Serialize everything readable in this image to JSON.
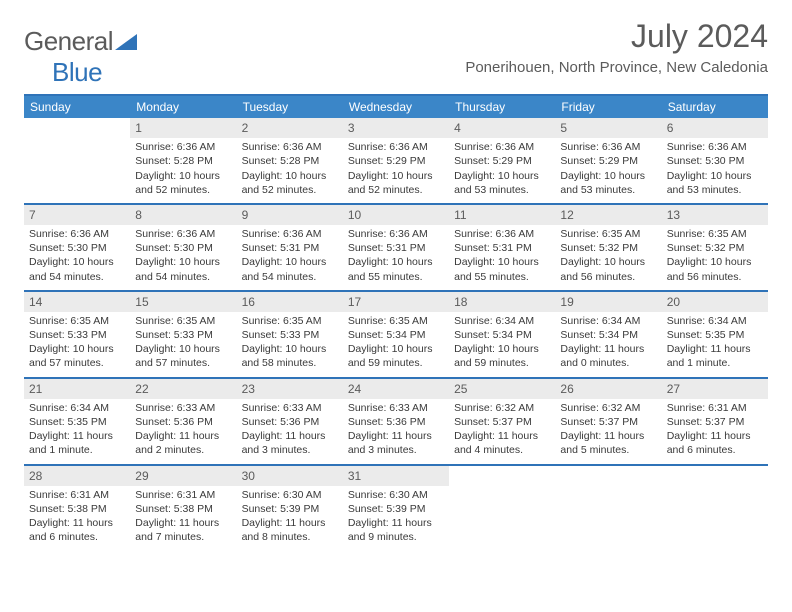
{
  "logo": {
    "word1": "General",
    "word2": "Blue"
  },
  "title": "July 2024",
  "location": "Ponerihouen, North Province, New Caledonia",
  "colors": {
    "brand_blue": "#2f73b8",
    "header_blue": "#3b86c8",
    "grey_text": "#5b5b5b",
    "daynum_bg": "#ebebeb",
    "body_text": "#3a3a3a"
  },
  "typography": {
    "title_fontsize": 32,
    "location_fontsize": 15,
    "dow_fontsize": 12,
    "cell_fontsize": 10.5
  },
  "dow": [
    "Sunday",
    "Monday",
    "Tuesday",
    "Wednesday",
    "Thursday",
    "Friday",
    "Saturday"
  ],
  "weeks": [
    [
      {
        "n": "",
        "lines": [
          "",
          "",
          "",
          ""
        ]
      },
      {
        "n": "1",
        "lines": [
          "Sunrise: 6:36 AM",
          "Sunset: 5:28 PM",
          "Daylight: 10 hours",
          "and 52 minutes."
        ]
      },
      {
        "n": "2",
        "lines": [
          "Sunrise: 6:36 AM",
          "Sunset: 5:28 PM",
          "Daylight: 10 hours",
          "and 52 minutes."
        ]
      },
      {
        "n": "3",
        "lines": [
          "Sunrise: 6:36 AM",
          "Sunset: 5:29 PM",
          "Daylight: 10 hours",
          "and 52 minutes."
        ]
      },
      {
        "n": "4",
        "lines": [
          "Sunrise: 6:36 AM",
          "Sunset: 5:29 PM",
          "Daylight: 10 hours",
          "and 53 minutes."
        ]
      },
      {
        "n": "5",
        "lines": [
          "Sunrise: 6:36 AM",
          "Sunset: 5:29 PM",
          "Daylight: 10 hours",
          "and 53 minutes."
        ]
      },
      {
        "n": "6",
        "lines": [
          "Sunrise: 6:36 AM",
          "Sunset: 5:30 PM",
          "Daylight: 10 hours",
          "and 53 minutes."
        ]
      }
    ],
    [
      {
        "n": "7",
        "lines": [
          "Sunrise: 6:36 AM",
          "Sunset: 5:30 PM",
          "Daylight: 10 hours",
          "and 54 minutes."
        ]
      },
      {
        "n": "8",
        "lines": [
          "Sunrise: 6:36 AM",
          "Sunset: 5:30 PM",
          "Daylight: 10 hours",
          "and 54 minutes."
        ]
      },
      {
        "n": "9",
        "lines": [
          "Sunrise: 6:36 AM",
          "Sunset: 5:31 PM",
          "Daylight: 10 hours",
          "and 54 minutes."
        ]
      },
      {
        "n": "10",
        "lines": [
          "Sunrise: 6:36 AM",
          "Sunset: 5:31 PM",
          "Daylight: 10 hours",
          "and 55 minutes."
        ]
      },
      {
        "n": "11",
        "lines": [
          "Sunrise: 6:36 AM",
          "Sunset: 5:31 PM",
          "Daylight: 10 hours",
          "and 55 minutes."
        ]
      },
      {
        "n": "12",
        "lines": [
          "Sunrise: 6:35 AM",
          "Sunset: 5:32 PM",
          "Daylight: 10 hours",
          "and 56 minutes."
        ]
      },
      {
        "n": "13",
        "lines": [
          "Sunrise: 6:35 AM",
          "Sunset: 5:32 PM",
          "Daylight: 10 hours",
          "and 56 minutes."
        ]
      }
    ],
    [
      {
        "n": "14",
        "lines": [
          "Sunrise: 6:35 AM",
          "Sunset: 5:33 PM",
          "Daylight: 10 hours",
          "and 57 minutes."
        ]
      },
      {
        "n": "15",
        "lines": [
          "Sunrise: 6:35 AM",
          "Sunset: 5:33 PM",
          "Daylight: 10 hours",
          "and 57 minutes."
        ]
      },
      {
        "n": "16",
        "lines": [
          "Sunrise: 6:35 AM",
          "Sunset: 5:33 PM",
          "Daylight: 10 hours",
          "and 58 minutes."
        ]
      },
      {
        "n": "17",
        "lines": [
          "Sunrise: 6:35 AM",
          "Sunset: 5:34 PM",
          "Daylight: 10 hours",
          "and 59 minutes."
        ]
      },
      {
        "n": "18",
        "lines": [
          "Sunrise: 6:34 AM",
          "Sunset: 5:34 PM",
          "Daylight: 10 hours",
          "and 59 minutes."
        ]
      },
      {
        "n": "19",
        "lines": [
          "Sunrise: 6:34 AM",
          "Sunset: 5:34 PM",
          "Daylight: 11 hours",
          "and 0 minutes."
        ]
      },
      {
        "n": "20",
        "lines": [
          "Sunrise: 6:34 AM",
          "Sunset: 5:35 PM",
          "Daylight: 11 hours",
          "and 1 minute."
        ]
      }
    ],
    [
      {
        "n": "21",
        "lines": [
          "Sunrise: 6:34 AM",
          "Sunset: 5:35 PM",
          "Daylight: 11 hours",
          "and 1 minute."
        ]
      },
      {
        "n": "22",
        "lines": [
          "Sunrise: 6:33 AM",
          "Sunset: 5:36 PM",
          "Daylight: 11 hours",
          "and 2 minutes."
        ]
      },
      {
        "n": "23",
        "lines": [
          "Sunrise: 6:33 AM",
          "Sunset: 5:36 PM",
          "Daylight: 11 hours",
          "and 3 minutes."
        ]
      },
      {
        "n": "24",
        "lines": [
          "Sunrise: 6:33 AM",
          "Sunset: 5:36 PM",
          "Daylight: 11 hours",
          "and 3 minutes."
        ]
      },
      {
        "n": "25",
        "lines": [
          "Sunrise: 6:32 AM",
          "Sunset: 5:37 PM",
          "Daylight: 11 hours",
          "and 4 minutes."
        ]
      },
      {
        "n": "26",
        "lines": [
          "Sunrise: 6:32 AM",
          "Sunset: 5:37 PM",
          "Daylight: 11 hours",
          "and 5 minutes."
        ]
      },
      {
        "n": "27",
        "lines": [
          "Sunrise: 6:31 AM",
          "Sunset: 5:37 PM",
          "Daylight: 11 hours",
          "and 6 minutes."
        ]
      }
    ],
    [
      {
        "n": "28",
        "lines": [
          "Sunrise: 6:31 AM",
          "Sunset: 5:38 PM",
          "Daylight: 11 hours",
          "and 6 minutes."
        ]
      },
      {
        "n": "29",
        "lines": [
          "Sunrise: 6:31 AM",
          "Sunset: 5:38 PM",
          "Daylight: 11 hours",
          "and 7 minutes."
        ]
      },
      {
        "n": "30",
        "lines": [
          "Sunrise: 6:30 AM",
          "Sunset: 5:39 PM",
          "Daylight: 11 hours",
          "and 8 minutes."
        ]
      },
      {
        "n": "31",
        "lines": [
          "Sunrise: 6:30 AM",
          "Sunset: 5:39 PM",
          "Daylight: 11 hours",
          "and 9 minutes."
        ]
      },
      {
        "n": "",
        "lines": [
          "",
          "",
          "",
          ""
        ]
      },
      {
        "n": "",
        "lines": [
          "",
          "",
          "",
          ""
        ]
      },
      {
        "n": "",
        "lines": [
          "",
          "",
          "",
          ""
        ]
      }
    ]
  ]
}
